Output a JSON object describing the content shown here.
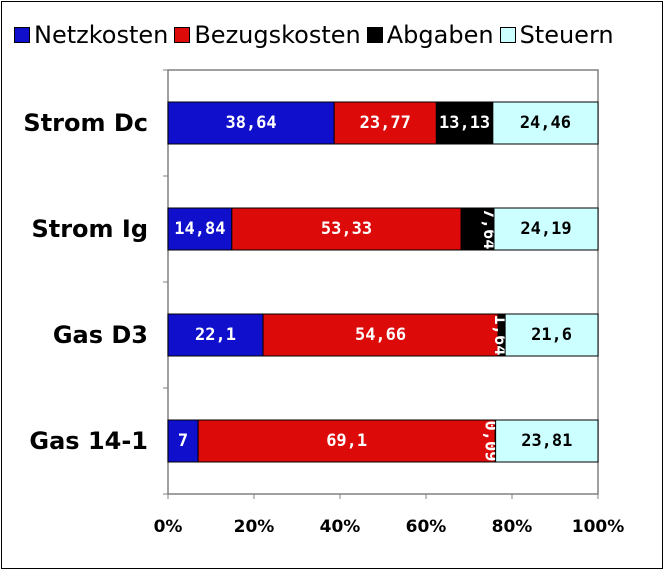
{
  "chart_data": {
    "type": "bar",
    "orientation": "horizontal",
    "stacked": "percent",
    "categories": [
      "Strom Dc",
      "Strom Ig",
      "Gas D3",
      "Gas 14-1"
    ],
    "series": [
      {
        "name": "Netzkosten",
        "color": "#1010cc",
        "values": [
          38.64,
          14.84,
          22.1,
          7
        ],
        "labels": [
          "38,64",
          "14,84",
          "22,1",
          "7"
        ]
      },
      {
        "name": "Bezugskosten",
        "color": "#dd0a0a",
        "values": [
          23.77,
          53.33,
          54.66,
          69.1
        ],
        "labels": [
          "23,77",
          "53,33",
          "54,66",
          "69,1"
        ]
      },
      {
        "name": "Abgaben",
        "color": "#000000",
        "values": [
          13.13,
          7.64,
          1.64,
          0.09
        ],
        "labels": [
          "13,13",
          "7,64",
          "1,64",
          "0,09"
        ]
      },
      {
        "name": "Steuern",
        "color": "#ccffff",
        "values": [
          24.46,
          24.19,
          21.6,
          23.81
        ],
        "labels": [
          "24,46",
          "24,19",
          "21,6",
          "23,81"
        ]
      }
    ],
    "xlim": [
      0,
      100
    ],
    "x_ticks": [
      "0%",
      "20%",
      "40%",
      "60%",
      "80%",
      "100%"
    ],
    "legend_position": "top",
    "grid": false
  }
}
